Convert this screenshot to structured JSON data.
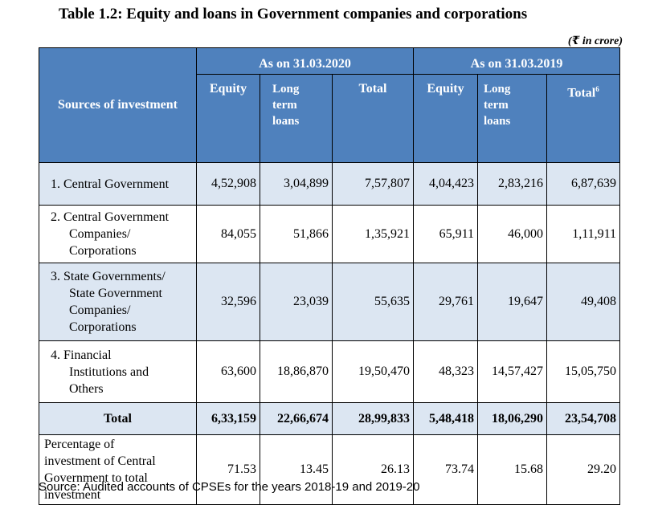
{
  "title": "Table 1.2: Equity and loans in Government companies and corporations",
  "unit": "(₹ in crore)",
  "header": {
    "sources": "Sources of investment",
    "period1": "As on 31.03.2020",
    "period2": "As on 31.03.2019",
    "equity": "Equity",
    "long1": "Long",
    "long2": "term",
    "long3": "loans",
    "total": "Total",
    "total2": "Total",
    "footnote_mark": "6"
  },
  "rows": [
    {
      "label_lines": [
        "1. Central Government"
      ],
      "values": [
        "4,52,908",
        "3,04,899",
        "7,57,807",
        "4,04,423",
        "2,83,216",
        "6,87,639"
      ]
    },
    {
      "label_lines": [
        "2. Central Government",
        "Companies/",
        "Corporations"
      ],
      "values": [
        "84,055",
        "51,866",
        "1,35,921",
        "65,911",
        "46,000",
        "1,11,911"
      ]
    },
    {
      "label_lines": [
        "3. State Governments/",
        "State Government",
        "Companies/",
        "Corporations"
      ],
      "values": [
        "32,596",
        "23,039",
        "55,635",
        "29,761",
        "19,647",
        "49,408"
      ]
    },
    {
      "label_lines": [
        "4. Financial",
        "Institutions and",
        "Others"
      ],
      "values": [
        "63,600",
        "18,86,870",
        "19,50,470",
        "48,323",
        "14,57,427",
        "15,05,750"
      ]
    }
  ],
  "total_row": {
    "label": "Total",
    "values": [
      "6,33,159",
      "22,66,674",
      "28,99,833",
      "5,48,418",
      "18,06,290",
      "23,54,708"
    ]
  },
  "percent_row": {
    "label_lines": [
      "Percentage of",
      "investment of Central",
      "Government to total",
      "investment"
    ],
    "values": [
      "71.53",
      "13.45",
      "26.13",
      "73.74",
      "15.68",
      "29.20"
    ]
  },
  "source": "Source: Audited accounts of CPSEs for the years 2018-19 and 2019-20"
}
